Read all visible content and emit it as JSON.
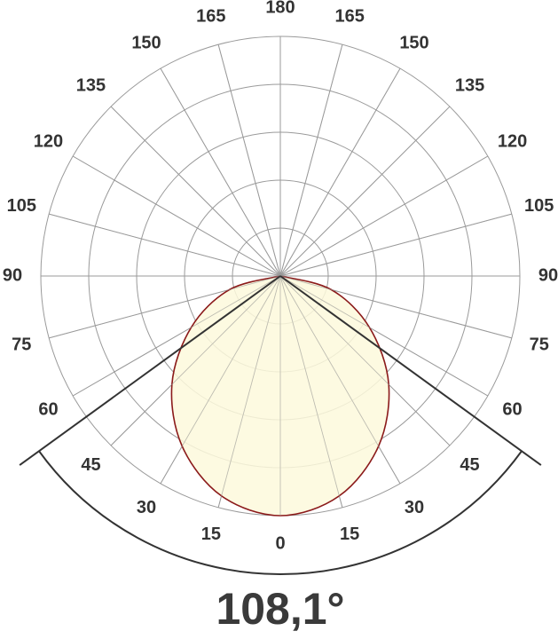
{
  "chart_data": {
    "type": "polar",
    "beam_angle": 108.1,
    "beam_angle_label": "108,1°",
    "xticks": [
      {
        "value": -180,
        "label": "180"
      },
      {
        "value": -165,
        "label": "165"
      },
      {
        "value": -150,
        "label": "150"
      },
      {
        "value": -135,
        "label": "135"
      },
      {
        "value": -120,
        "label": "120"
      },
      {
        "value": -105,
        "label": "105"
      },
      {
        "value": -90,
        "label": "90"
      },
      {
        "value": -75,
        "label": "75"
      },
      {
        "value": -60,
        "label": "60"
      },
      {
        "value": -45,
        "label": "45"
      },
      {
        "value": -30,
        "label": "30"
      },
      {
        "value": -15,
        "label": "15"
      },
      0,
      15,
      30,
      45,
      60,
      75,
      90,
      105,
      120,
      135,
      150,
      165
    ],
    "ylim": [
      0,
      100
    ],
    "yticks": [
      20,
      40,
      60,
      80,
      100
    ],
    "grid": true,
    "series": [
      {
        "color": "#8b1a1a",
        "fill": "#fdf9dc",
        "x": [
          -90,
          -75,
          -60,
          -45,
          -30,
          -15,
          0,
          15,
          30,
          45,
          60,
          75,
          90
        ],
        "values": [
          0,
          22,
          43,
          64,
          82,
          95,
          100,
          95,
          82,
          64,
          43,
          22,
          0
        ]
      }
    ]
  }
}
